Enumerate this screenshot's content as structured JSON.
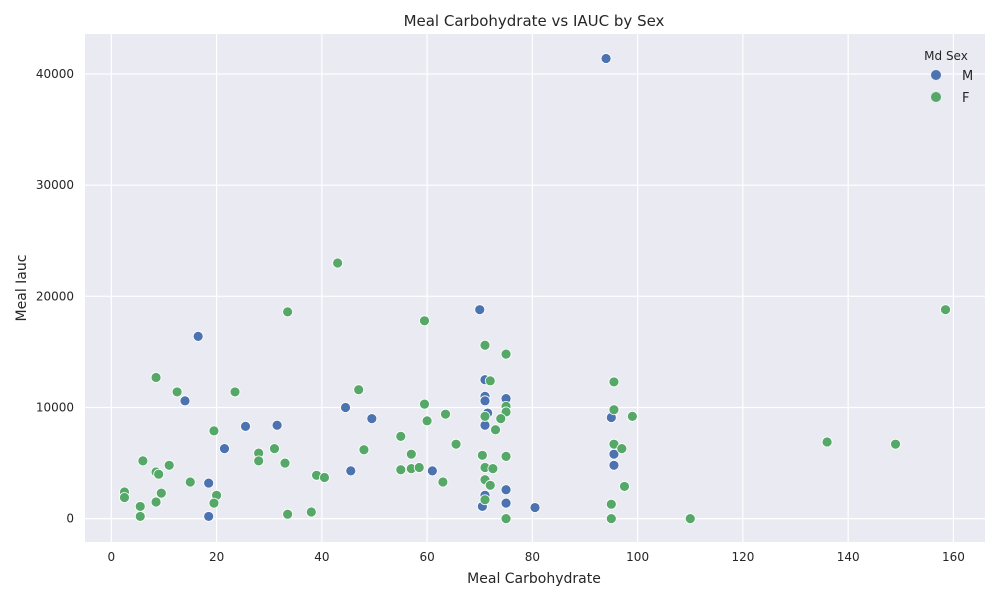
{
  "chart_data": {
    "type": "scatter",
    "title": "Meal Carbohydrate vs IAUC by Sex",
    "xlabel": "Meal Carbohydrate",
    "ylabel": "Meal Iauc",
    "xlim": [
      -5,
      166
    ],
    "ylim": [
      -2100,
      43600
    ],
    "xticks": [
      0,
      20,
      40,
      60,
      80,
      100,
      120,
      140,
      160
    ],
    "yticks": [
      0,
      10000,
      20000,
      30000,
      40000
    ],
    "grid": true,
    "background": "#eaeaf2",
    "legend": {
      "title": "Md Sex",
      "placement": "top-right"
    },
    "series": [
      {
        "name": "M",
        "color": "#4c72b0",
        "points": [
          [
            94,
            41400
          ],
          [
            70,
            18800
          ],
          [
            16.5,
            16400
          ],
          [
            14,
            10600
          ],
          [
            44.5,
            10000
          ],
          [
            49.5,
            9000
          ],
          [
            71,
            11000
          ],
          [
            71,
            10600
          ],
          [
            71,
            12500
          ],
          [
            75,
            10800
          ],
          [
            71.5,
            9500
          ],
          [
            71,
            8400
          ],
          [
            31.5,
            8400
          ],
          [
            25.5,
            8300
          ],
          [
            21.5,
            6300
          ],
          [
            95,
            9100
          ],
          [
            95.5,
            5800
          ],
          [
            95.5,
            4800
          ],
          [
            45.5,
            4300
          ],
          [
            61,
            4300
          ],
          [
            18.5,
            3200
          ],
          [
            75,
            2600
          ],
          [
            71,
            2100
          ],
          [
            75,
            1400
          ],
          [
            70.5,
            1100
          ],
          [
            80.5,
            1000
          ],
          [
            18.5,
            200
          ]
        ]
      },
      {
        "name": "F",
        "color": "#55a868",
        "points": [
          [
            43,
            23000
          ],
          [
            33.5,
            18600
          ],
          [
            59.5,
            17800
          ],
          [
            158.5,
            18800
          ],
          [
            71,
            15600
          ],
          [
            75,
            14800
          ],
          [
            95.5,
            12300
          ],
          [
            72,
            12400
          ],
          [
            8.5,
            12700
          ],
          [
            12.5,
            11400
          ],
          [
            23.5,
            11400
          ],
          [
            47,
            11600
          ],
          [
            59.5,
            10300
          ],
          [
            63.5,
            9400
          ],
          [
            60,
            8800
          ],
          [
            75,
            10100
          ],
          [
            75,
            9600
          ],
          [
            71,
            9200
          ],
          [
            74,
            9000
          ],
          [
            95.5,
            9800
          ],
          [
            99,
            9200
          ],
          [
            73,
            8000
          ],
          [
            19.5,
            7900
          ],
          [
            55,
            7400
          ],
          [
            65.5,
            6700
          ],
          [
            95.5,
            6700
          ],
          [
            97,
            6300
          ],
          [
            136,
            6900
          ],
          [
            149,
            6700
          ],
          [
            28,
            5900
          ],
          [
            31,
            6300
          ],
          [
            48,
            6200
          ],
          [
            57,
            5800
          ],
          [
            70.5,
            5700
          ],
          [
            75,
            5600
          ],
          [
            6,
            5200
          ],
          [
            11,
            4800
          ],
          [
            28,
            5200
          ],
          [
            33,
            5000
          ],
          [
            55,
            4400
          ],
          [
            57,
            4500
          ],
          [
            58.5,
            4600
          ],
          [
            71,
            4600
          ],
          [
            72.5,
            4500
          ],
          [
            8.5,
            4200
          ],
          [
            9,
            4000
          ],
          [
            39,
            3900
          ],
          [
            40.5,
            3700
          ],
          [
            15,
            3300
          ],
          [
            63,
            3300
          ],
          [
            71,
            3500
          ],
          [
            72,
            3000
          ],
          [
            97.5,
            2900
          ],
          [
            2.5,
            2400
          ],
          [
            9.5,
            2300
          ],
          [
            2.5,
            1900
          ],
          [
            20,
            2100
          ],
          [
            8.5,
            1500
          ],
          [
            19.5,
            1400
          ],
          [
            5.5,
            1100
          ],
          [
            71,
            1700
          ],
          [
            95,
            1300
          ],
          [
            33.5,
            400
          ],
          [
            38,
            600
          ],
          [
            5.5,
            200
          ],
          [
            75,
            0
          ],
          [
            95,
            0
          ],
          [
            110,
            0
          ]
        ]
      }
    ]
  }
}
